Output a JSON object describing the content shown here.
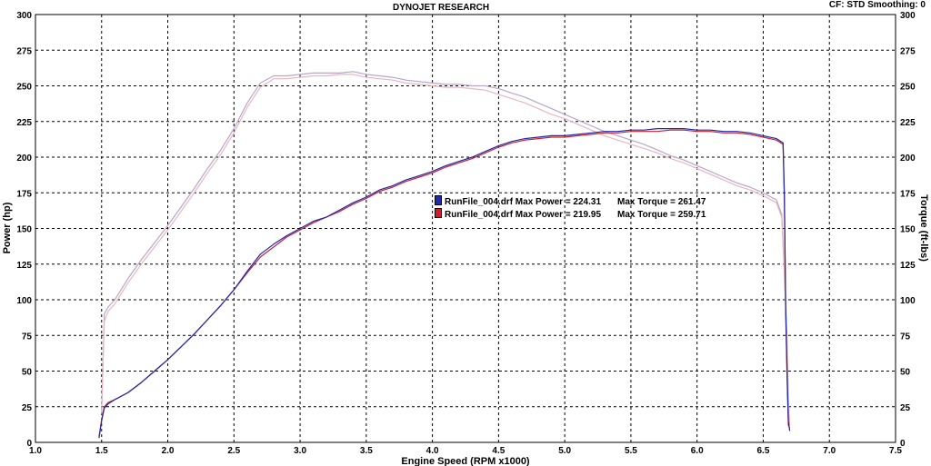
{
  "header": {
    "title": "DYNOJET RESEARCH",
    "settings": "CF: STD  Smoothing: 0"
  },
  "legend": [
    {
      "label": "RunFile_004.drf Max Power = 224.31",
      "torque_label": "Max Torque = 261.47",
      "color": "#1f2aa8"
    },
    {
      "label": "RunFile_004.drf Max Power = 219.95",
      "torque_label": "Max Torque = 259.71",
      "color": "#cc2030"
    }
  ],
  "chart_data": {
    "type": "line",
    "xlabel": "Engine Speed (RPM x1000)",
    "ylabel": "Power (hp)",
    "y2label": "Torque (ft-lbs)",
    "xlim": [
      1.0,
      7.5
    ],
    "ylim": [
      0,
      300
    ],
    "y2lim": [
      0,
      300
    ],
    "x_ticks": [
      "1.0",
      "1.5",
      "2.0",
      "2.5",
      "3.0",
      "3.5",
      "4.0",
      "4.5",
      "5.0",
      "5.5",
      "6.0",
      "6.5",
      "7.0",
      "7.5"
    ],
    "y_ticks": [
      "0",
      "25",
      "50",
      "75",
      "100",
      "125",
      "150",
      "175",
      "200",
      "225",
      "250",
      "275",
      "300"
    ],
    "grid": true,
    "colors": {
      "run1": "#1f2aa8",
      "run2": "#cc2030",
      "torque1": "#b9a6c8",
      "torque2": "#e6b7bf"
    },
    "series": [
      {
        "name": "RunFile_004.drf",
        "quantity": "Power",
        "axis": "left",
        "color": "#1f2aa8",
        "points": [
          [
            1.48,
            3
          ],
          [
            1.5,
            15
          ],
          [
            1.52,
            24
          ],
          [
            1.55,
            27
          ],
          [
            1.6,
            30
          ],
          [
            1.7,
            35
          ],
          [
            1.8,
            42
          ],
          [
            1.9,
            50
          ],
          [
            2.0,
            58
          ],
          [
            2.1,
            67
          ],
          [
            2.2,
            76
          ],
          [
            2.3,
            86
          ],
          [
            2.4,
            96
          ],
          [
            2.5,
            107
          ],
          [
            2.6,
            120
          ],
          [
            2.7,
            132
          ],
          [
            2.8,
            139
          ],
          [
            2.9,
            145
          ],
          [
            3.0,
            150
          ],
          [
            3.1,
            155
          ],
          [
            3.2,
            158
          ],
          [
            3.3,
            163
          ],
          [
            3.4,
            168
          ],
          [
            3.5,
            172
          ],
          [
            3.6,
            177
          ],
          [
            3.7,
            180
          ],
          [
            3.8,
            184
          ],
          [
            3.9,
            187
          ],
          [
            4.0,
            190
          ],
          [
            4.1,
            194
          ],
          [
            4.2,
            197
          ],
          [
            4.3,
            200
          ],
          [
            4.4,
            204
          ],
          [
            4.5,
            208
          ],
          [
            4.6,
            211
          ],
          [
            4.7,
            213
          ],
          [
            4.8,
            214
          ],
          [
            4.9,
            215
          ],
          [
            5.0,
            215
          ],
          [
            5.1,
            216
          ],
          [
            5.2,
            217
          ],
          [
            5.3,
            218
          ],
          [
            5.4,
            218
          ],
          [
            5.5,
            219
          ],
          [
            5.6,
            219
          ],
          [
            5.7,
            220
          ],
          [
            5.8,
            220
          ],
          [
            5.9,
            220
          ],
          [
            6.0,
            219
          ],
          [
            6.1,
            219
          ],
          [
            6.2,
            218
          ],
          [
            6.3,
            218
          ],
          [
            6.4,
            217
          ],
          [
            6.5,
            215
          ],
          [
            6.6,
            213
          ],
          [
            6.65,
            210
          ],
          [
            6.66,
            175
          ],
          [
            6.67,
            95
          ],
          [
            6.68,
            50
          ],
          [
            6.69,
            15
          ],
          [
            6.7,
            8
          ]
        ]
      },
      {
        "name": "RunFile_004.drf",
        "quantity": "Power",
        "axis": "left",
        "color": "#cc2030",
        "points": [
          [
            1.48,
            4
          ],
          [
            1.5,
            16
          ],
          [
            1.52,
            25
          ],
          [
            1.55,
            28
          ],
          [
            1.6,
            30
          ],
          [
            1.7,
            35
          ],
          [
            1.8,
            42
          ],
          [
            1.9,
            50
          ],
          [
            2.0,
            58
          ],
          [
            2.1,
            67
          ],
          [
            2.2,
            76
          ],
          [
            2.3,
            86
          ],
          [
            2.4,
            96
          ],
          [
            2.5,
            107
          ],
          [
            2.6,
            119
          ],
          [
            2.7,
            130
          ],
          [
            2.8,
            137
          ],
          [
            2.9,
            144
          ],
          [
            3.0,
            149
          ],
          [
            3.1,
            154
          ],
          [
            3.2,
            158
          ],
          [
            3.3,
            162
          ],
          [
            3.4,
            167
          ],
          [
            3.5,
            171
          ],
          [
            3.6,
            176
          ],
          [
            3.7,
            179
          ],
          [
            3.8,
            183
          ],
          [
            3.9,
            186
          ],
          [
            4.0,
            189
          ],
          [
            4.1,
            193
          ],
          [
            4.2,
            196
          ],
          [
            4.3,
            199
          ],
          [
            4.4,
            203
          ],
          [
            4.5,
            207
          ],
          [
            4.6,
            210
          ],
          [
            4.7,
            212
          ],
          [
            4.8,
            213
          ],
          [
            4.9,
            214
          ],
          [
            5.0,
            214
          ],
          [
            5.1,
            215
          ],
          [
            5.2,
            216
          ],
          [
            5.3,
            217
          ],
          [
            5.4,
            217
          ],
          [
            5.5,
            218
          ],
          [
            5.6,
            218
          ],
          [
            5.7,
            218
          ],
          [
            5.8,
            219
          ],
          [
            5.9,
            219
          ],
          [
            6.0,
            218
          ],
          [
            6.1,
            218
          ],
          [
            6.2,
            217
          ],
          [
            6.3,
            217
          ],
          [
            6.4,
            216
          ],
          [
            6.5,
            214
          ],
          [
            6.6,
            212
          ],
          [
            6.65,
            209
          ],
          [
            6.66,
            170
          ],
          [
            6.67,
            90
          ],
          [
            6.68,
            45
          ],
          [
            6.69,
            12
          ],
          [
            6.7,
            10
          ]
        ]
      },
      {
        "name": "RunFile_004.drf",
        "quantity": "Torque",
        "axis": "right",
        "color": "#b9a6c8",
        "points": [
          [
            1.5,
            20
          ],
          [
            1.52,
            90
          ],
          [
            1.55,
            95
          ],
          [
            1.6,
            100
          ],
          [
            1.7,
            115
          ],
          [
            1.8,
            128
          ],
          [
            1.9,
            140
          ],
          [
            2.0,
            152
          ],
          [
            2.1,
            165
          ],
          [
            2.2,
            178
          ],
          [
            2.3,
            192
          ],
          [
            2.4,
            205
          ],
          [
            2.5,
            220
          ],
          [
            2.6,
            238
          ],
          [
            2.7,
            252
          ],
          [
            2.8,
            257
          ],
          [
            2.9,
            257
          ],
          [
            3.0,
            258
          ],
          [
            3.1,
            259
          ],
          [
            3.2,
            259
          ],
          [
            3.3,
            259
          ],
          [
            3.4,
            260
          ],
          [
            3.5,
            258
          ],
          [
            3.6,
            257
          ],
          [
            3.7,
            256
          ],
          [
            3.8,
            254
          ],
          [
            3.9,
            253
          ],
          [
            4.0,
            252
          ],
          [
            4.1,
            251
          ],
          [
            4.2,
            251
          ],
          [
            4.3,
            250
          ],
          [
            4.4,
            250
          ],
          [
            4.5,
            248
          ],
          [
            4.6,
            245
          ],
          [
            4.7,
            242
          ],
          [
            4.8,
            238
          ],
          [
            4.9,
            234
          ],
          [
            5.0,
            230
          ],
          [
            5.1,
            226
          ],
          [
            5.2,
            222
          ],
          [
            5.3,
            218
          ],
          [
            5.4,
            215
          ],
          [
            5.5,
            212
          ],
          [
            5.6,
            209
          ],
          [
            5.7,
            205
          ],
          [
            5.8,
            201
          ],
          [
            5.9,
            198
          ],
          [
            6.0,
            194
          ],
          [
            6.1,
            190
          ],
          [
            6.2,
            186
          ],
          [
            6.3,
            182
          ],
          [
            6.4,
            179
          ],
          [
            6.5,
            175
          ],
          [
            6.6,
            170
          ],
          [
            6.64,
            160
          ],
          [
            6.66,
            120
          ],
          [
            6.68,
            70
          ],
          [
            6.69,
            30
          ],
          [
            6.7,
            12
          ]
        ]
      },
      {
        "name": "RunFile_004.drf",
        "quantity": "Torque",
        "axis": "right",
        "color": "#e6b7bf",
        "points": [
          [
            1.5,
            22
          ],
          [
            1.52,
            85
          ],
          [
            1.55,
            92
          ],
          [
            1.6,
            97
          ],
          [
            1.7,
            112
          ],
          [
            1.8,
            125
          ],
          [
            1.9,
            137
          ],
          [
            2.0,
            149
          ],
          [
            2.1,
            162
          ],
          [
            2.2,
            175
          ],
          [
            2.3,
            189
          ],
          [
            2.4,
            202
          ],
          [
            2.5,
            217
          ],
          [
            2.6,
            235
          ],
          [
            2.7,
            249
          ],
          [
            2.8,
            255
          ],
          [
            2.9,
            255
          ],
          [
            3.0,
            256
          ],
          [
            3.1,
            257
          ],
          [
            3.2,
            257
          ],
          [
            3.3,
            258
          ],
          [
            3.4,
            258
          ],
          [
            3.5,
            256
          ],
          [
            3.6,
            255
          ],
          [
            3.7,
            254
          ],
          [
            3.8,
            252
          ],
          [
            3.9,
            251
          ],
          [
            4.0,
            250
          ],
          [
            4.1,
            249
          ],
          [
            4.2,
            249
          ],
          [
            4.3,
            248
          ],
          [
            4.4,
            247
          ],
          [
            4.5,
            244
          ],
          [
            4.6,
            241
          ],
          [
            4.7,
            238
          ],
          [
            4.8,
            234
          ],
          [
            4.9,
            230
          ],
          [
            5.0,
            227
          ],
          [
            5.1,
            223
          ],
          [
            5.2,
            219
          ],
          [
            5.3,
            215
          ],
          [
            5.4,
            212
          ],
          [
            5.5,
            209
          ],
          [
            5.6,
            206
          ],
          [
            5.7,
            203
          ],
          [
            5.8,
            199
          ],
          [
            5.9,
            196
          ],
          [
            6.0,
            192
          ],
          [
            6.1,
            188
          ],
          [
            6.2,
            184
          ],
          [
            6.3,
            180
          ],
          [
            6.4,
            177
          ],
          [
            6.5,
            173
          ],
          [
            6.6,
            168
          ],
          [
            6.64,
            158
          ],
          [
            6.66,
            118
          ],
          [
            6.68,
            68
          ],
          [
            6.69,
            28
          ],
          [
            6.7,
            14
          ]
        ]
      }
    ]
  }
}
